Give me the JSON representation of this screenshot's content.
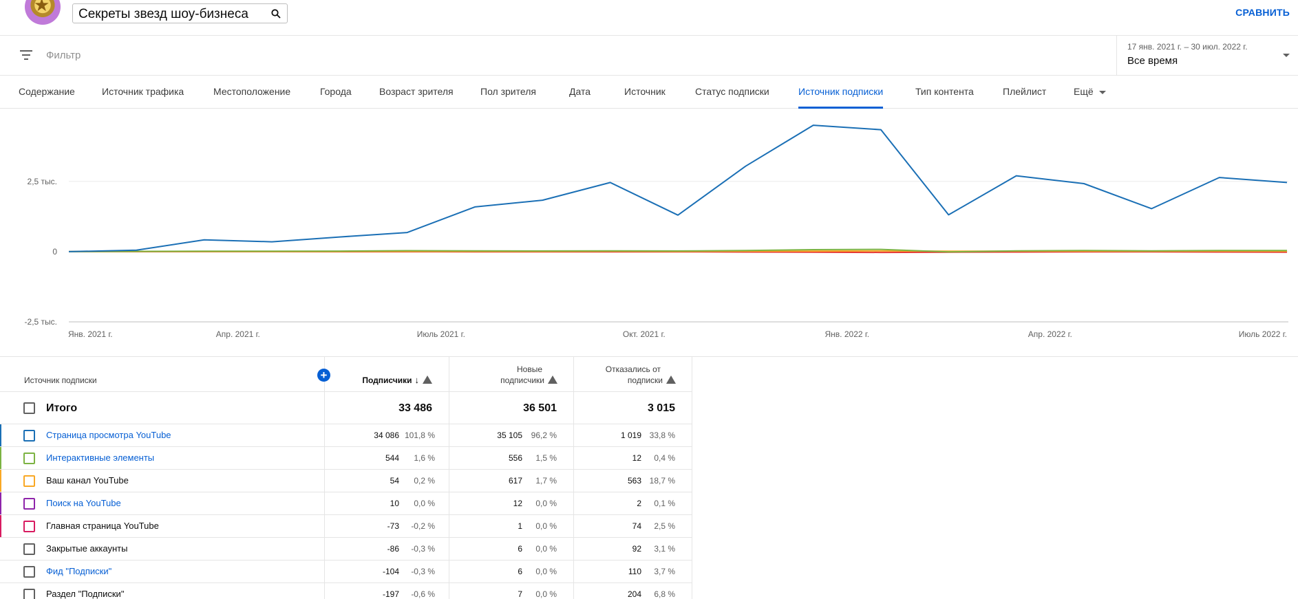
{
  "header": {
    "search_query": "Секреты звезд шоу-бизнеса",
    "compare_label": "СРАВНИТЬ"
  },
  "filter": {
    "placeholder": "Фильтр",
    "date_range": "17 янв. 2021 г. – 30 июл. 2022 г.",
    "period": "Все время"
  },
  "tabs": [
    {
      "label": "Содержание"
    },
    {
      "label": "Источник трафика"
    },
    {
      "label": "Местоположение"
    },
    {
      "label": "Города"
    },
    {
      "label": "Возраст зрителя"
    },
    {
      "label": "Пол зрителя"
    },
    {
      "label": "Дата"
    },
    {
      "label": "Источник"
    },
    {
      "label": "Статус подписки"
    },
    {
      "label": "Источник подписки",
      "active": true
    },
    {
      "label": "Тип контента"
    },
    {
      "label": "Плейлист"
    },
    {
      "label": "Ещё"
    }
  ],
  "chart_data": {
    "type": "line",
    "ylim": [
      -2500,
      4600
    ],
    "y_ticks": [
      {
        "value": 2500,
        "label": "2,5 тыс."
      },
      {
        "value": 0,
        "label": "0"
      },
      {
        "value": -2500,
        "label": "-2,5 тыс."
      }
    ],
    "x_ticks": [
      "Янв. 2021 г.",
      "Апр. 2021 г.",
      "Июль 2021 г.",
      "Окт. 2021 г.",
      "Янв. 2022 г.",
      "Апр. 2022 г.",
      "Июль 2022 г."
    ],
    "x_count": 19,
    "x_tick_index": [
      0,
      2.5,
      5.5,
      8.5,
      11.5,
      14.5,
      18
    ],
    "series": [
      {
        "color": "#1a6fb5",
        "values": [
          0,
          50,
          420,
          350,
          520,
          680,
          1590,
          1830,
          2460,
          1300,
          3040,
          4500,
          4340,
          1310,
          2700,
          2420,
          1530,
          2640,
          2460
        ]
      },
      {
        "color": "#7cb342",
        "values": [
          0,
          10,
          15,
          15,
          20,
          35,
          30,
          25,
          30,
          25,
          40,
          70,
          80,
          -10,
          30,
          40,
          30,
          40,
          40
        ]
      },
      {
        "color": "#f9a825",
        "values": [
          0,
          5,
          5,
          5,
          5,
          10,
          10,
          10,
          15,
          10,
          15,
          20,
          25,
          15,
          20,
          20,
          15,
          20,
          15
        ]
      },
      {
        "color": "#e53935",
        "values": [
          0,
          -2,
          -3,
          -3,
          -5,
          -5,
          -8,
          -10,
          -10,
          -8,
          -15,
          -20,
          -30,
          -20,
          -15,
          -10,
          -10,
          -15,
          -20
        ]
      }
    ]
  },
  "table": {
    "col_source": "Источник подписки",
    "col_subs": "Подписчики",
    "col_new_1": "Новые",
    "col_new_2": "подписчики",
    "col_lost_1": "Отказались от",
    "col_lost_2": "подписки",
    "add_column": "+",
    "total": {
      "label": "Итого",
      "subs": "33 486",
      "new": "36 501",
      "lost": "3 015"
    },
    "rows": [
      {
        "label": "Страница просмотра YouTube",
        "link": true,
        "color": "#1a6fb5",
        "subs": "34 086",
        "subs_pct": "101,8 %",
        "new": "35 105",
        "new_pct": "96,2 %",
        "lost": "1 019",
        "lost_pct": "33,8 %"
      },
      {
        "label": "Интерактивные элементы",
        "link": true,
        "color": "#7cb342",
        "subs": "544",
        "subs_pct": "1,6 %",
        "new": "556",
        "new_pct": "1,5 %",
        "lost": "12",
        "lost_pct": "0,4 %"
      },
      {
        "label": "Ваш канал YouTube",
        "link": false,
        "color": "#f9a825",
        "subs": "54",
        "subs_pct": "0,2 %",
        "new": "617",
        "new_pct": "1,7 %",
        "lost": "563",
        "lost_pct": "18,7 %"
      },
      {
        "label": "Поиск на YouTube",
        "link": true,
        "color": "#8e24aa",
        "subs": "10",
        "subs_pct": "0,0 %",
        "new": "12",
        "new_pct": "0,0 %",
        "lost": "2",
        "lost_pct": "0,1 %"
      },
      {
        "label": "Главная страница YouTube",
        "link": false,
        "color": "#d81b60",
        "subs": "-73",
        "subs_pct": "-0,2 %",
        "new": "1",
        "new_pct": "0,0 %",
        "lost": "74",
        "lost_pct": "2,5 %"
      },
      {
        "label": "Закрытые аккаунты",
        "link": false,
        "color": "",
        "subs": "-86",
        "subs_pct": "-0,3 %",
        "new": "6",
        "new_pct": "0,0 %",
        "lost": "92",
        "lost_pct": "3,1 %"
      },
      {
        "label": "Фид \"Подписки\"",
        "link": true,
        "color": "",
        "subs": "-104",
        "subs_pct": "-0,3 %",
        "new": "6",
        "new_pct": "0,0 %",
        "lost": "110",
        "lost_pct": "3,7 %"
      },
      {
        "label": "Раздел \"Подписки\"",
        "link": false,
        "color": "",
        "subs": "-197",
        "subs_pct": "-0,6 %",
        "new": "7",
        "new_pct": "0,0 %",
        "lost": "204",
        "lost_pct": "6,8 %"
      }
    ]
  }
}
